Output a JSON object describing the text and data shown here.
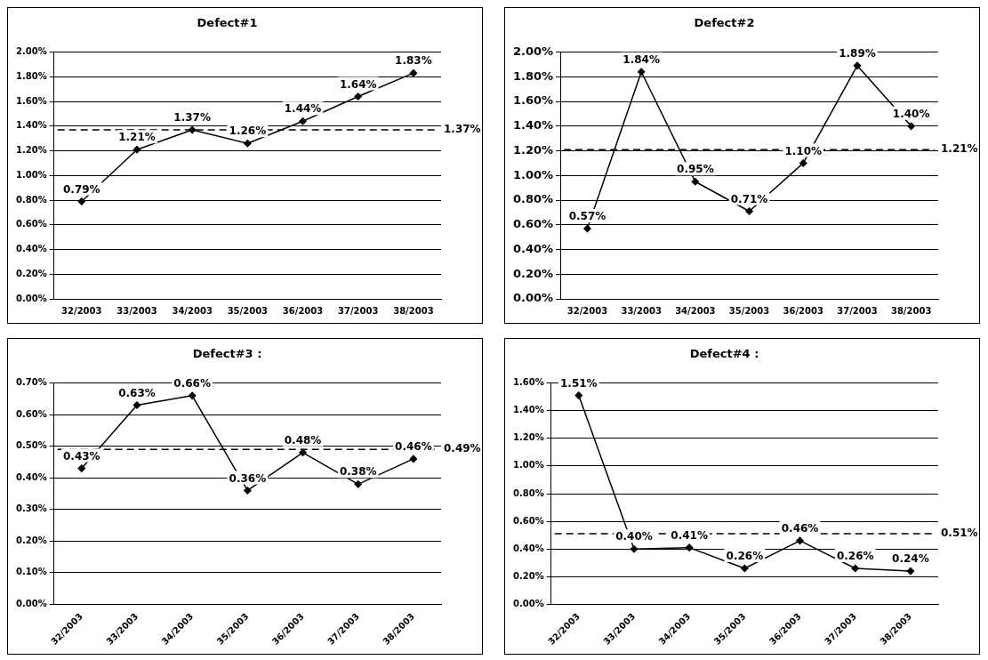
{
  "chart_data": [
    {
      "type": "line",
      "title": "Defect#1",
      "categories": [
        "32/2003",
        "33/2003",
        "34/2003",
        "35/2003",
        "36/2003",
        "37/2003",
        "38/2003"
      ],
      "series": [
        {
          "color": "#000000",
          "values": [
            0.79,
            1.21,
            1.37,
            1.26,
            1.44,
            1.64,
            1.83
          ],
          "value_labels": [
            "0.79%",
            "1.21%",
            "1.37%",
            "1.26%",
            "1.44%",
            "1.64%",
            "1.83%"
          ]
        }
      ],
      "ylim": [
        0,
        2
      ],
      "yticks": [
        {
          "value": 0,
          "label": "0.00%"
        },
        {
          "value": 0.2,
          "label": "0.20%"
        },
        {
          "value": 0.4,
          "label": "0.40%"
        },
        {
          "value": 0.6,
          "label": "0.60%"
        },
        {
          "value": 0.8,
          "label": "0.80%"
        },
        {
          "value": 1,
          "label": "1.00%"
        },
        {
          "value": 1.2,
          "label": "1.20%"
        },
        {
          "value": 1.4,
          "label": "1.40%"
        },
        {
          "value": 1.6,
          "label": "1.60%"
        },
        {
          "value": 1.8,
          "label": "1.80%"
        },
        {
          "value": 2,
          "label": "2.00%"
        }
      ],
      "ref_lines": [
        {
          "axis": "y",
          "value": 1.37,
          "label": "1.37%",
          "line_style": "dashed"
        }
      ],
      "grid": "y",
      "legend": false,
      "marker": "diamond",
      "line_style": "solid"
    },
    {
      "type": "line",
      "title": "Defect#2",
      "categories": [
        "32/2003",
        "33/2003",
        "34/2003",
        "35/2003",
        "36/2003",
        "37/2003",
        "38/2003"
      ],
      "series": [
        {
          "color": "#000000",
          "values": [
            0.57,
            1.84,
            0.95,
            0.71,
            1.1,
            1.89,
            1.4
          ],
          "value_labels": [
            "0.57%",
            "1.84%",
            "0.95%",
            "0.71%",
            "1.10%",
            "1.89%",
            "1.40%"
          ]
        }
      ],
      "ylim": [
        0,
        2
      ],
      "yticks": [
        {
          "value": 0,
          "label": "0.00%"
        },
        {
          "value": 0.2,
          "label": "0.20%"
        },
        {
          "value": 0.4,
          "label": "0.40%"
        },
        {
          "value": 0.6,
          "label": "0.60%"
        },
        {
          "value": 0.8,
          "label": "0.80%"
        },
        {
          "value": 1,
          "label": "1.00%"
        },
        {
          "value": 1.2,
          "label": "1.20%"
        },
        {
          "value": 1.4,
          "label": "1.40%"
        },
        {
          "value": 1.6,
          "label": "1.60%"
        },
        {
          "value": 1.8,
          "label": "1.80%"
        },
        {
          "value": 2,
          "label": "2.00%"
        }
      ],
      "ref_lines": [
        {
          "axis": "y",
          "value": 1.21,
          "label": "1.21%",
          "line_style": "dashed"
        }
      ],
      "grid": "y",
      "legend": false,
      "marker": "diamond",
      "line_style": "solid"
    },
    {
      "type": "line",
      "title": "Defect#3 :",
      "categories": [
        "32/2003",
        "33/2003",
        "34/2003",
        "35/2003",
        "36/2003",
        "37/2003",
        "38/2003"
      ],
      "series": [
        {
          "color": "#000000",
          "values": [
            0.43,
            0.63,
            0.66,
            0.36,
            0.48,
            0.38,
            0.46
          ],
          "value_labels": [
            "0.43%",
            "0.63%",
            "0.66%",
            "0.36%",
            "0.48%",
            "0.38%",
            "0.46%"
          ]
        }
      ],
      "ylim": [
        0,
        0.7
      ],
      "yticks": [
        {
          "value": 0,
          "label": "0.00%"
        },
        {
          "value": 0.1,
          "label": "0.10%"
        },
        {
          "value": 0.2,
          "label": "0.20%"
        },
        {
          "value": 0.3,
          "label": "0.30%"
        },
        {
          "value": 0.4,
          "label": "0.40%"
        },
        {
          "value": 0.5,
          "label": "0.50%"
        },
        {
          "value": 0.6,
          "label": "0.60%"
        },
        {
          "value": 0.7,
          "label": "0.70%"
        }
      ],
      "ref_lines": [
        {
          "axis": "y",
          "value": 0.49,
          "label": "0.49%",
          "line_style": "dashed"
        }
      ],
      "grid": "y",
      "legend": false,
      "marker": "diamond",
      "line_style": "solid"
    },
    {
      "type": "line",
      "title": "Defect#4 :",
      "categories": [
        "32/2003",
        "33/2003",
        "34/2003",
        "35/2003",
        "36/2003",
        "37/2003",
        "38/2003"
      ],
      "series": [
        {
          "color": "#000000",
          "values": [
            1.51,
            0.4,
            0.41,
            0.26,
            0.46,
            0.26,
            0.24
          ],
          "value_labels": [
            "1.51%",
            "0.40%",
            "0.41%",
            "0.26%",
            "0.46%",
            "0.26%",
            "0.24%"
          ]
        }
      ],
      "ylim": [
        0,
        1.6
      ],
      "yticks": [
        {
          "value": 0,
          "label": "0.00%"
        },
        {
          "value": 0.2,
          "label": "0.20%"
        },
        {
          "value": 0.4,
          "label": "0.40%"
        },
        {
          "value": 0.6,
          "label": "0.60%"
        },
        {
          "value": 0.8,
          "label": "0.80%"
        },
        {
          "value": 1,
          "label": "1.00%"
        },
        {
          "value": 1.2,
          "label": "1.20%"
        },
        {
          "value": 1.4,
          "label": "1.40%"
        },
        {
          "value": 1.6,
          "label": "1.60%"
        }
      ],
      "ref_lines": [
        {
          "axis": "y",
          "value": 0.51,
          "label": "0.51%",
          "line_style": "dashed"
        }
      ],
      "grid": "y",
      "legend": false,
      "marker": "diamond",
      "line_style": "solid"
    }
  ]
}
